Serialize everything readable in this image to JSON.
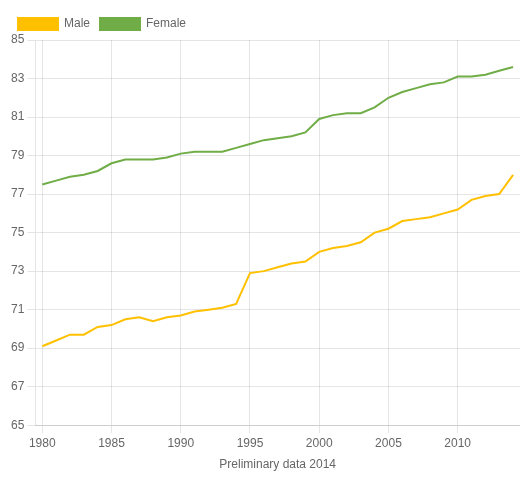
{
  "chart_data": {
    "type": "line",
    "xlabel": "Preliminary data 2014",
    "x": [
      1980,
      1981,
      1982,
      1983,
      1984,
      1985,
      1986,
      1987,
      1988,
      1989,
      1990,
      1991,
      1992,
      1993,
      1994,
      1995,
      1996,
      1997,
      1998,
      1999,
      2000,
      2001,
      2002,
      2003,
      2004,
      2005,
      2006,
      2007,
      2008,
      2009,
      2010,
      2011,
      2012,
      2013,
      2014
    ],
    "series": [
      {
        "name": "Male",
        "color": "#FFC000",
        "values": [
          69.1,
          69.4,
          69.7,
          69.7,
          70.1,
          70.2,
          70.5,
          70.6,
          70.4,
          70.6,
          70.7,
          70.9,
          71.0,
          71.1,
          71.3,
          72.9,
          73.0,
          73.2,
          73.4,
          73.5,
          74.0,
          74.2,
          74.3,
          74.5,
          75.0,
          75.2,
          75.6,
          75.7,
          75.8,
          76.0,
          76.2,
          76.7,
          76.9,
          77.0,
          78.0
        ]
      },
      {
        "name": "Female",
        "color": "#70AD47",
        "values": [
          77.5,
          77.7,
          77.9,
          78.0,
          78.2,
          78.6,
          78.8,
          78.8,
          78.8,
          78.9,
          79.1,
          79.2,
          79.2,
          79.2,
          79.4,
          79.6,
          79.8,
          79.9,
          80.0,
          80.2,
          80.9,
          81.1,
          81.2,
          81.2,
          81.5,
          82.0,
          82.3,
          82.5,
          82.7,
          82.8,
          83.1,
          83.1,
          83.2,
          83.4,
          83.6
        ]
      }
    ],
    "xlim": [
      1979.5,
      2014.5
    ],
    "xticks": [
      1980,
      1985,
      1990,
      1995,
      2000,
      2005,
      2010
    ],
    "ylim": [
      65,
      85
    ],
    "yticks": [
      65,
      67,
      69,
      71,
      73,
      75,
      77,
      79,
      81,
      83,
      85
    ],
    "grid": true,
    "legend": "upper left"
  }
}
